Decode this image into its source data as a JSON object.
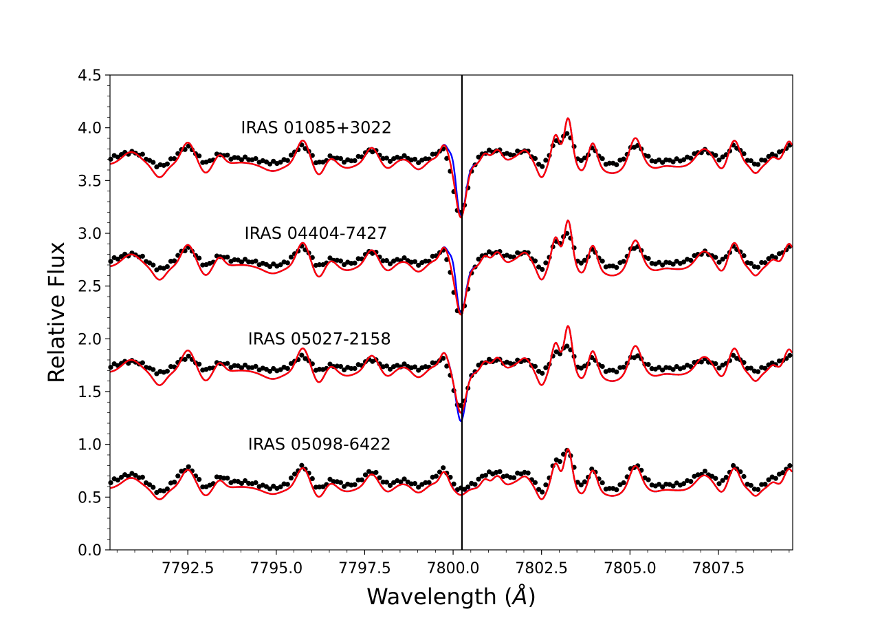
{
  "chart_data": {
    "type": "line",
    "xlabel": "Wavelength (",
    "xlabel_unit": "Å",
    "xlabel_close": ")",
    "ylabel": "Relative Flux",
    "xlim": [
      7790.3,
      7809.6
    ],
    "ylim": [
      0.0,
      4.5
    ],
    "xticks": [
      7792.5,
      7795.0,
      7797.5,
      7800.0,
      7802.5,
      7805.0,
      7807.5
    ],
    "xtick_labels": [
      "7792.5",
      "7795.0",
      "7797.5",
      "7800.0",
      "7802.5",
      "7805.0",
      "7807.5"
    ],
    "yticks": [
      0.0,
      0.5,
      1.0,
      1.5,
      2.0,
      2.5,
      3.0,
      3.5,
      4.0,
      4.5
    ],
    "ytick_labels": [
      "0.0",
      "0.5",
      "1.0",
      "1.5",
      "2.0",
      "2.5",
      "3.0",
      "3.5",
      "4.0",
      "4.5"
    ],
    "vline_x": 7800.25,
    "grid": false,
    "colors": {
      "observed": "#000000",
      "model_blue": "#0000ff",
      "model_red": "#ff0000"
    },
    "spectra": [
      {
        "name": "IRAS 01085+3022",
        "label_pos": [
          7794.0,
          4.0
        ],
        "offset": 3.65,
        "line_depth": 0.5,
        "line_extra": 0.02,
        "blue_extra": 0.0,
        "blend_scale": 1.0,
        "model_amp": 1.0,
        "obs_amp": 0.55,
        "wide_blue": true
      },
      {
        "name": "IRAS 04404-7427",
        "label_pos": [
          7794.1,
          3.0
        ],
        "offset": 2.68,
        "line_depth": 0.45,
        "line_extra": 0.05,
        "blue_extra": 0.0,
        "blend_scale": 1.0,
        "model_amp": 1.0,
        "obs_amp": 0.6,
        "wide_blue": true
      },
      {
        "name": "IRAS 05027-2158",
        "label_pos": [
          7794.2,
          2.0
        ],
        "offset": 1.68,
        "line_depth": 0.38,
        "line_extra": 0.0,
        "blue_extra": 0.08,
        "blend_scale": 1.0,
        "model_amp": 1.0,
        "obs_amp": 0.45,
        "wide_blue": false
      },
      {
        "name": "IRAS 05098-6422",
        "label_pos": [
          7794.2,
          1.0
        ],
        "offset": 0.58,
        "line_depth": 0.06,
        "line_extra": 0.0,
        "blue_extra": 0.0,
        "blend_scale": 0.85,
        "model_amp": 0.85,
        "obs_amp": 0.7,
        "wide_blue": false
      }
    ]
  }
}
